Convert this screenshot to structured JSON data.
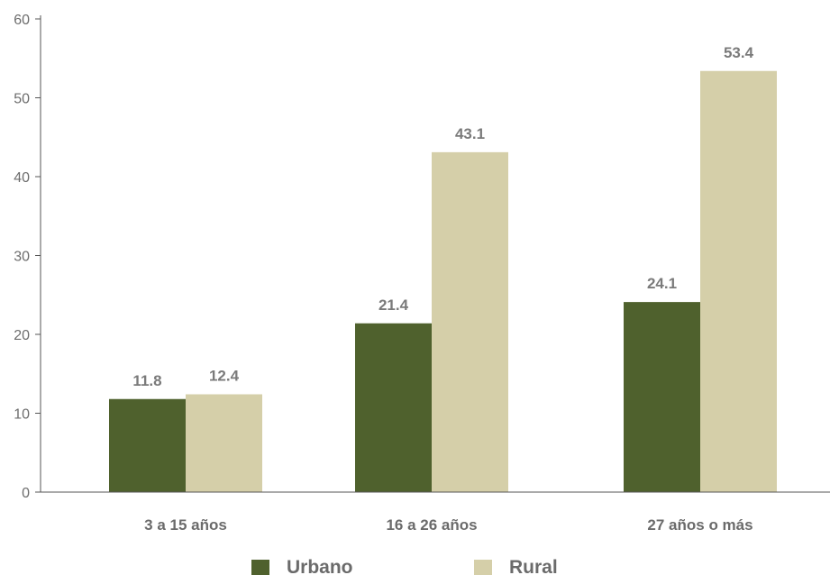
{
  "chart_data": {
    "type": "bar",
    "title": "",
    "xlabel": "",
    "ylabel": "",
    "categories": [
      "3 a 15 años",
      "16 a 26 años",
      "27 años o más"
    ],
    "series": [
      {
        "name": "Urbano",
        "values": [
          11.8,
          21.4,
          24.1
        ],
        "color": "#4f612d"
      },
      {
        "name": "Rural",
        "values": [
          12.4,
          43.1,
          53.4
        ],
        "color": "#d5cfa9"
      }
    ],
    "yticks": [
      0,
      10,
      20,
      30,
      40,
      50,
      60
    ],
    "ylim": [
      0,
      60
    ],
    "grid": false,
    "legend_position": "bottom"
  }
}
